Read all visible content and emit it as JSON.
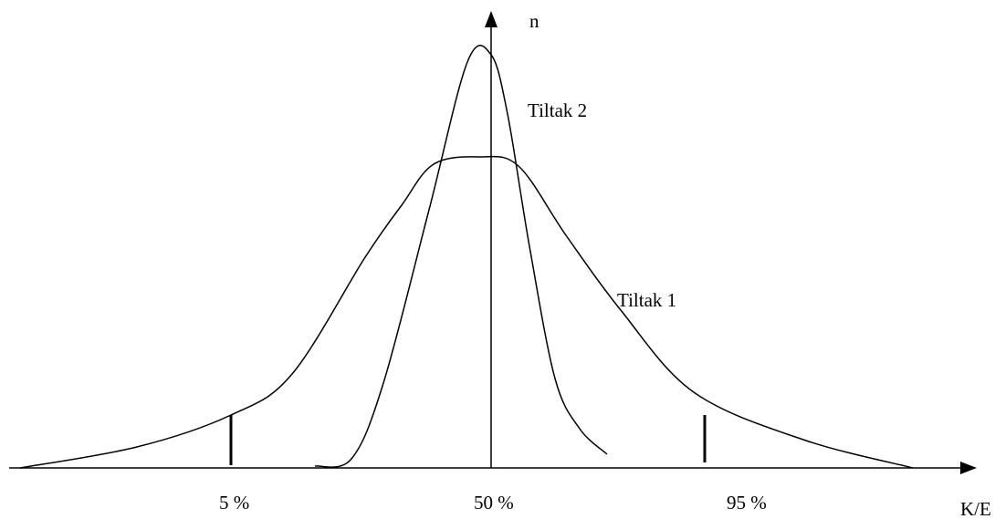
{
  "axes": {
    "y_label": "n",
    "x_label": "K/E"
  },
  "curves": [
    {
      "label": "Tiltak 2"
    },
    {
      "label": "Tiltak 1"
    }
  ],
  "markers": [
    {
      "label": "5 %"
    },
    {
      "label": "50 %"
    },
    {
      "label": "95 %"
    }
  ]
}
